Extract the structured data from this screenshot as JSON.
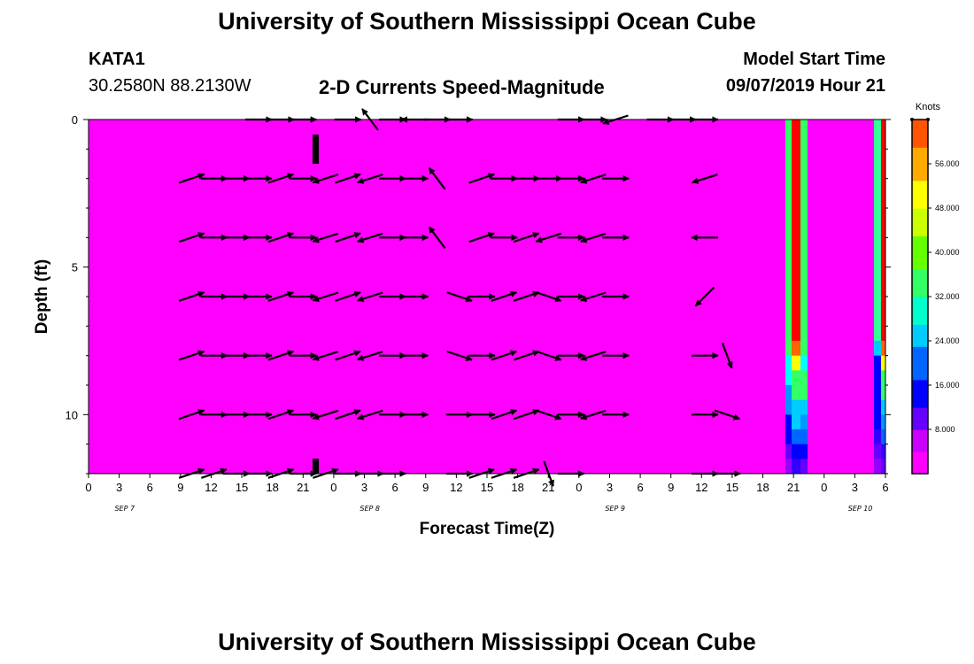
{
  "header": {
    "title_top": "University of Southern Mississippi Ocean Cube",
    "title_bottom": "University of Southern Mississippi Ocean Cube",
    "station": "KATA1",
    "coords": "30.2580N 88.2130W",
    "plot_title": "2-D Currents Speed-Magnitude",
    "model_label": "Model Start Time",
    "model_time": "09/07/2019 Hour 21"
  },
  "chart_data": {
    "type": "heatmap",
    "title": "2-D Currents Speed-Magnitude",
    "xlabel": "Forecast Time(Z)",
    "ylabel": "Depth (ft)",
    "x_tick_labels": [
      "0",
      "3",
      "6",
      "9",
      "12",
      "15",
      "18",
      "21",
      "0",
      "3",
      "6",
      "9",
      "12",
      "15",
      "18",
      "21",
      "0",
      "3",
      "6",
      "9",
      "12",
      "15",
      "18",
      "21",
      "0",
      "3",
      "6"
    ],
    "date_labels": [
      "SEP 7",
      "SEP 8",
      "SEP 9",
      "SEP 10"
    ],
    "date_label_hours": [
      21,
      93,
      165,
      237
    ],
    "x_range_hours": [
      0,
      234
    ],
    "y_ticks": [
      0,
      5,
      10
    ],
    "y_range": [
      0,
      12
    ],
    "y_inverted": true,
    "colorbar": {
      "unit": "Knots",
      "range": [
        0,
        64
      ],
      "ticks": [
        "8.000",
        "16.000",
        "24.000",
        "32.000",
        "40.000",
        "48.000",
        "56.000"
      ],
      "tick_values": [
        8,
        16,
        24,
        32,
        40,
        48,
        56
      ]
    },
    "background_value": 0,
    "depth_rows": [
      0,
      2,
      4,
      6,
      8,
      10,
      12
    ],
    "vectors": [
      {
        "row": 0,
        "v": [
          null,
          null,
          null,
          null,
          null,
          "e",
          "e",
          "e",
          null,
          "e",
          "wn",
          "e",
          "w",
          "e",
          "e",
          null,
          null,
          null,
          null,
          "e",
          "e",
          "ws",
          null,
          "e",
          "e",
          "e",
          null,
          null,
          null
        ]
      },
      {
        "row": 2,
        "v": [
          null,
          null,
          "en",
          "e",
          "e",
          "e",
          "en",
          "e",
          "ws",
          "en",
          "ws",
          "e",
          "e",
          "wn",
          null,
          "en",
          "e",
          "e",
          "e",
          "e",
          "ws",
          "e",
          null,
          null,
          null,
          "ws",
          null,
          null,
          null
        ]
      },
      {
        "row": 4,
        "v": [
          null,
          null,
          "en",
          "e",
          "e",
          "e",
          "en",
          "e",
          "ws",
          "en",
          "ws",
          "e",
          "e",
          "wn",
          null,
          "en",
          "e",
          "en",
          "ws",
          "e",
          "ws",
          "e",
          null,
          null,
          null,
          "w",
          null,
          null,
          null
        ]
      },
      {
        "row": 6,
        "v": [
          null,
          null,
          "en",
          "e",
          "e",
          "e",
          "en",
          "e",
          "ws",
          "en",
          "ws",
          "e",
          "e",
          null,
          "es",
          "e",
          "en",
          "en",
          "es",
          "e",
          "ws",
          "e",
          null,
          null,
          null,
          "sw",
          null,
          null,
          null
        ]
      },
      {
        "row": 8,
        "v": [
          null,
          null,
          "en",
          "e",
          "e",
          "e",
          "en",
          "e",
          "ws",
          "en",
          "ws",
          "e",
          "e",
          null,
          "es",
          "e",
          "en",
          "en",
          "es",
          "e",
          "ws",
          "e",
          null,
          null,
          null,
          "e",
          "ss",
          null,
          null
        ]
      },
      {
        "row": 10,
        "v": [
          null,
          null,
          "en",
          "e",
          "e",
          "e",
          "en",
          "e",
          "ws",
          "en",
          "ws",
          "e",
          "e",
          null,
          "e",
          "e",
          "en",
          "en",
          "es",
          "e",
          "ws",
          "e",
          null,
          null,
          null,
          "e",
          "es",
          null,
          null
        ]
      },
      {
        "row": 12,
        "v": [
          null,
          null,
          "en",
          "en",
          "e",
          "e",
          "en",
          "e",
          "en",
          "e",
          "e",
          "e",
          null,
          null,
          "e",
          "en",
          "en",
          "en",
          "ss",
          "e",
          null,
          null,
          null,
          null,
          null,
          "e",
          "e",
          null,
          null
        ]
      }
    ],
    "grid": false
  }
}
